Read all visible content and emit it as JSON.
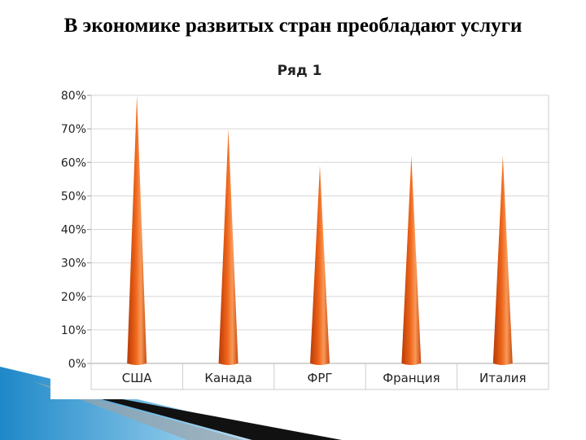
{
  "slide": {
    "title": "В экономике развитых стран преобладают услуги"
  },
  "colors": {
    "cone_dark": "#b83a07",
    "cone_mid": "#f0661a",
    "cone_light": "#f79a5a",
    "grid": "#d6d6d6",
    "deco_blue": "#1e88c8",
    "deco_black": "#111111"
  },
  "chart_data": {
    "type": "bar",
    "title": "Ряд 1",
    "categories": [
      "США",
      "Канада",
      "ФРГ",
      "Франция",
      "Италия"
    ],
    "series": [
      {
        "name": "Ряд 1",
        "values": [
          80,
          70,
          59,
          62,
          62
        ]
      }
    ],
    "ylim": [
      0,
      80
    ],
    "yticks": [
      "0%",
      "10%",
      "20%",
      "30%",
      "40%",
      "50%",
      "60%",
      "70%",
      "80%"
    ],
    "ytick_values": [
      0,
      10,
      20,
      30,
      40,
      50,
      60,
      70,
      80
    ],
    "xlabel": "",
    "ylabel": "",
    "grid": true,
    "legend": "none",
    "bar_shape": "cone"
  }
}
